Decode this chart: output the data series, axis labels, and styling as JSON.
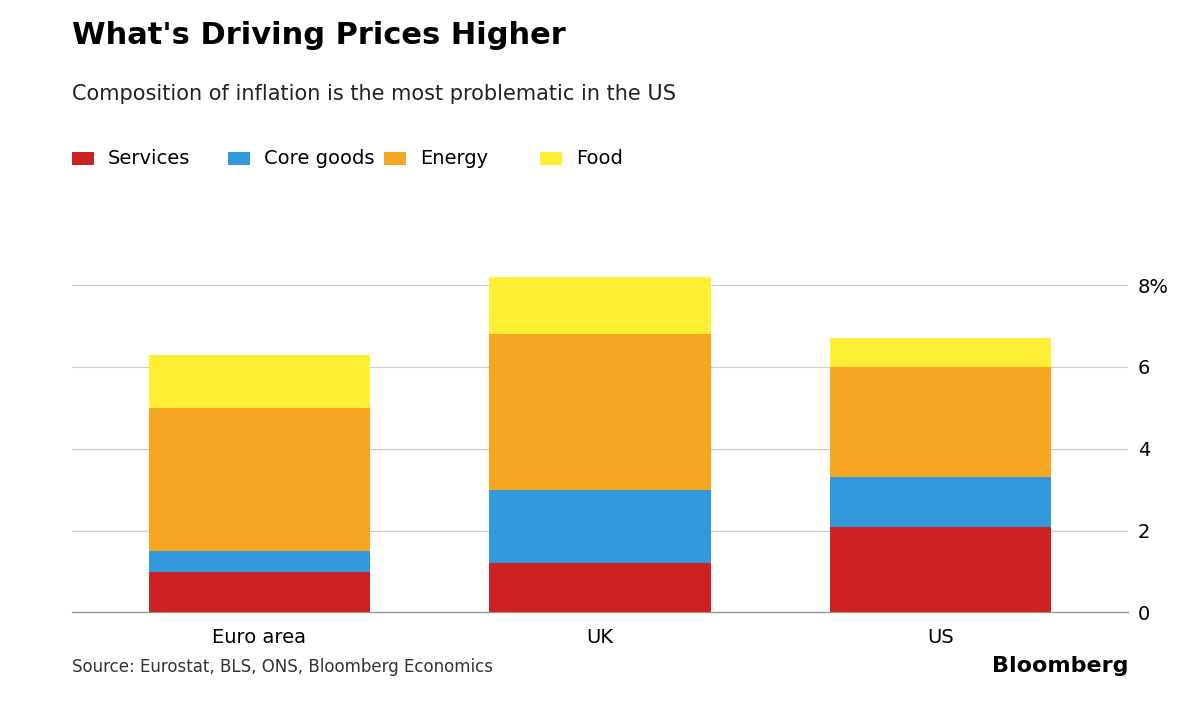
{
  "title": "What's Driving Prices Higher",
  "subtitle": "Composition of inflation is the most problematic in the US",
  "categories": [
    "Euro area",
    "UK",
    "US"
  ],
  "series": {
    "Services": [
      1.0,
      1.2,
      2.1
    ],
    "Core goods": [
      0.5,
      1.8,
      1.2
    ],
    "Energy": [
      3.5,
      3.8,
      2.7
    ],
    "Food": [
      1.3,
      1.4,
      0.7
    ]
  },
  "colors": {
    "Services": "#cc2222",
    "Core goods": "#3399dd",
    "Energy": "#f5a623",
    "Food": "#ffee33"
  },
  "ylim": [
    0,
    8.6
  ],
  "yticks": [
    0,
    2,
    4,
    6,
    8
  ],
  "ytick_labels": [
    "0",
    "2",
    "4",
    "6",
    "8%"
  ],
  "source_text": "Source: Eurostat, BLS, ONS, Bloomberg Economics",
  "bloomberg_text": "Bloomberg",
  "background_color": "#ffffff",
  "bar_width": 0.65,
  "title_fontsize": 22,
  "subtitle_fontsize": 15,
  "legend_fontsize": 14,
  "tick_fontsize": 14,
  "source_fontsize": 12,
  "bloomberg_fontsize": 16
}
